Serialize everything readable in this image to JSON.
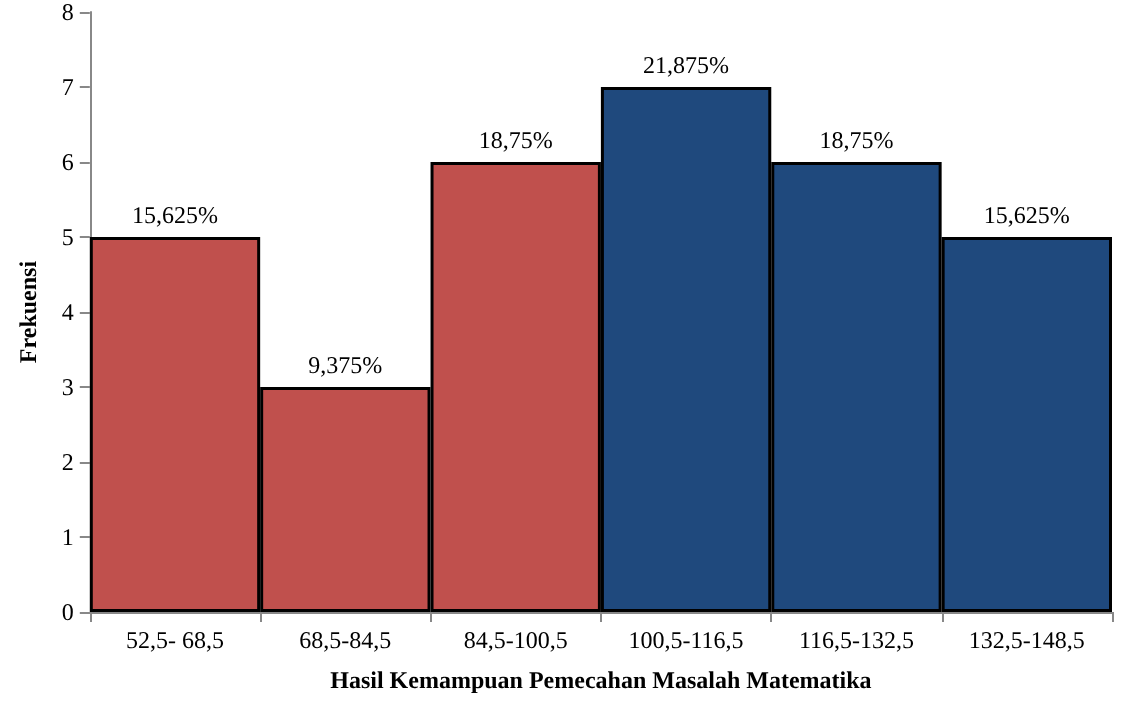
{
  "chart_data": {
    "type": "bar",
    "xlabel": "Hasil Kemampuan Pemecahan Masalah Matematika",
    "ylabel": "Frekuensi",
    "categories": [
      "52,5- 68,5",
      "68,5-84,5",
      "84,5-100,5",
      "100,5-116,5",
      "116,5-132,5",
      "132,5-148,5"
    ],
    "values": [
      5,
      3,
      6,
      7,
      6,
      5
    ],
    "colors": [
      "#c0504d",
      "#c0504d",
      "#c0504d",
      "#1f497d",
      "#1f497d",
      "#1f497d"
    ],
    "annotations": [
      {
        "text": "15,625%",
        "x": "52,5- 68,5",
        "y": 5
      },
      {
        "text": "9,375%",
        "x": "68,5-84,5",
        "y": 3
      },
      {
        "text": "18,75%",
        "x": "84,5-100,5",
        "y": 6
      },
      {
        "text": "21,875%",
        "x": "100,5-116,5",
        "y": 7
      },
      {
        "text": "18,75%",
        "x": "116,5-132,5",
        "y": 6
      },
      {
        "text": "15,625%",
        "x": "132,5-148,5",
        "y": 5
      }
    ],
    "ylim": [
      0,
      8
    ],
    "yticks": [
      0,
      1,
      2,
      3,
      4,
      5,
      6,
      7,
      8
    ],
    "grid": false
  }
}
